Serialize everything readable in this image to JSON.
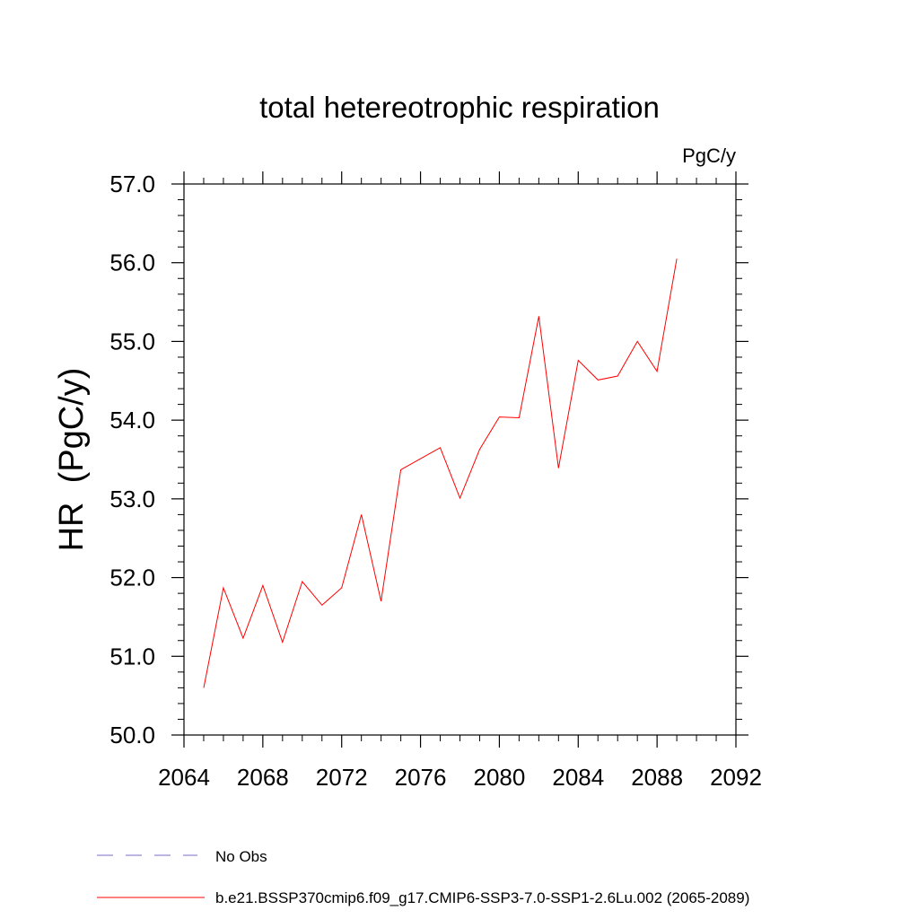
{
  "chart_data": {
    "type": "line",
    "title": "total hetereotrophic respiration",
    "units_label": "PgC/y",
    "ylabel": "HR  (PgC/y)",
    "xlabel": "",
    "xlim": [
      2064,
      2092
    ],
    "ylim": [
      50.0,
      57.0
    ],
    "x_ticks": [
      "2064",
      "2068",
      "2072",
      "2076",
      "2080",
      "2084",
      "2088",
      "2092"
    ],
    "y_ticks": [
      "50.0",
      "51.0",
      "52.0",
      "53.0",
      "54.0",
      "55.0",
      "56.0",
      "57.0"
    ],
    "grid": false,
    "legend_position": "bottom",
    "series": [
      {
        "name": "b.e21.BSSP370cmip6.f09_g17.CMIP6-SSP3-7.0-SSP1-2.6Lu.002 (2065-2089)",
        "color": "#ff0000",
        "style": "solid",
        "x": [
          2065,
          2066,
          2067,
          2068,
          2069,
          2070,
          2071,
          2072,
          2073,
          2074,
          2075,
          2076,
          2077,
          2078,
          2079,
          2080,
          2081,
          2082,
          2083,
          2084,
          2085,
          2086,
          2087,
          2088,
          2089
        ],
        "y": [
          50.6,
          51.87,
          51.23,
          51.9,
          51.18,
          51.95,
          51.65,
          51.87,
          52.8,
          51.7,
          53.37,
          53.51,
          53.65,
          53.01,
          53.63,
          54.04,
          54.03,
          55.32,
          53.39,
          54.76,
          54.51,
          54.56,
          55.0,
          54.62,
          56.05
        ]
      }
    ],
    "legend": [
      {
        "label": "No Obs",
        "color": "#7b6bc8",
        "style": "dashed"
      },
      {
        "label": "b.e21.BSSP370cmip6.f09_g17.CMIP6-SSP3-7.0-SSP1-2.6Lu.002 (2065-2089)",
        "color": "#ff0000",
        "style": "solid"
      }
    ]
  }
}
